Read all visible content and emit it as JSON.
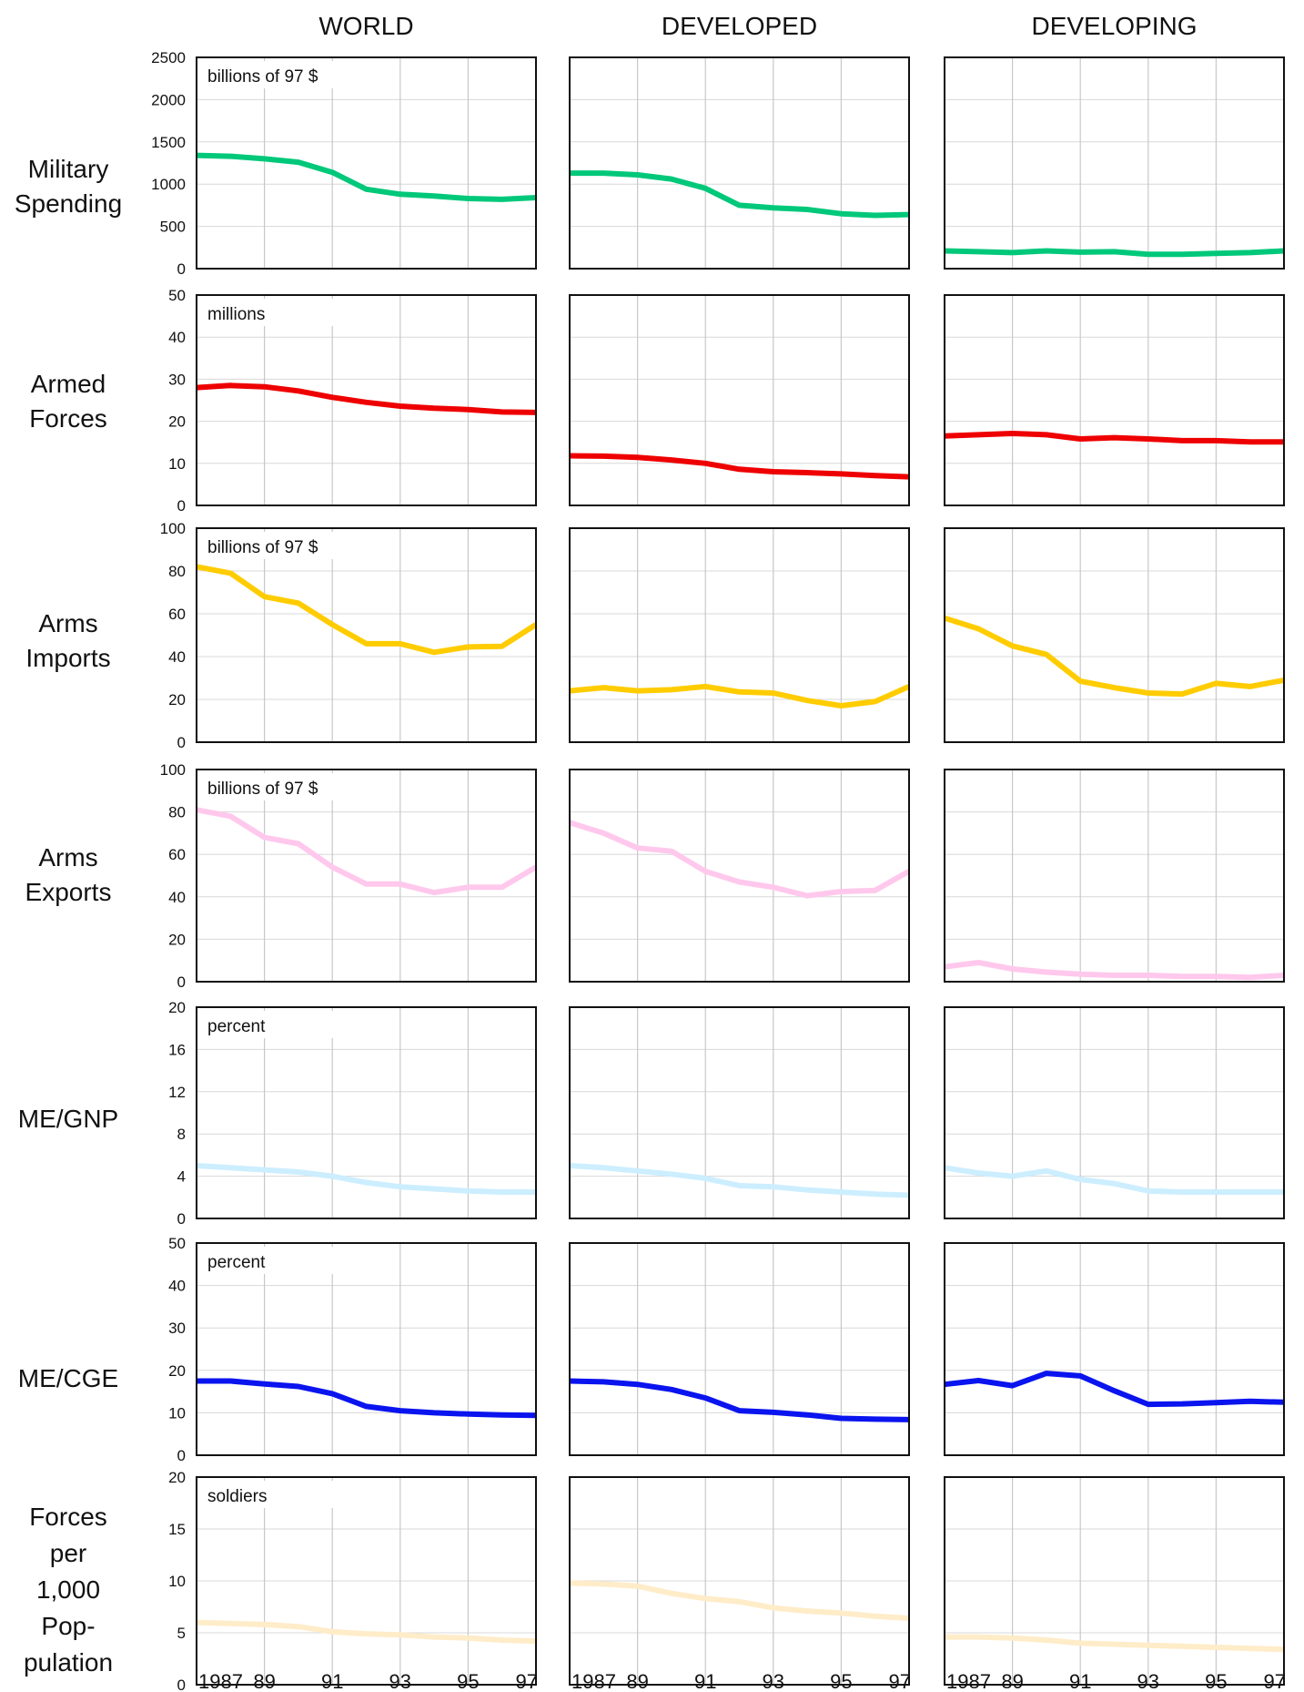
{
  "columns": [
    "WORLD",
    "DEVELOPED",
    "DEVELOPING"
  ],
  "x_tick_labels": [
    "1987",
    "89",
    "91",
    "93",
    "95",
    "97"
  ],
  "chart_data": [
    {
      "type": "line",
      "row_label": "Military Spending",
      "unit_label": "billions of 97 $",
      "color": "#00c87a",
      "ylim": [
        0,
        2500
      ],
      "yticks": [
        0,
        500,
        1000,
        1500,
        2000,
        2500
      ],
      "x": [
        1987,
        1988,
        1989,
        1990,
        1991,
        1992,
        1993,
        1994,
        1995,
        1996,
        1997
      ],
      "series": [
        {
          "column": "WORLD",
          "values": [
            1340,
            1330,
            1300,
            1260,
            1140,
            940,
            880,
            860,
            830,
            820,
            840
          ]
        },
        {
          "column": "DEVELOPED",
          "values": [
            1130,
            1130,
            1110,
            1060,
            950,
            750,
            720,
            700,
            650,
            630,
            640
          ]
        },
        {
          "column": "DEVELOPING",
          "values": [
            210,
            200,
            190,
            210,
            195,
            200,
            170,
            170,
            180,
            190,
            210
          ]
        }
      ]
    },
    {
      "type": "line",
      "row_label": "Armed Forces",
      "unit_label": "millions",
      "color": "#ee0000",
      "ylim": [
        0,
        50
      ],
      "yticks": [
        0,
        10,
        20,
        30,
        40,
        50
      ],
      "x": [
        1987,
        1988,
        1989,
        1990,
        1991,
        1992,
        1993,
        1994,
        1995,
        1996,
        1997
      ],
      "series": [
        {
          "column": "WORLD",
          "values": [
            28,
            28.5,
            28.2,
            27.2,
            25.7,
            24.5,
            23.6,
            23.1,
            22.8,
            22.2,
            22.1
          ]
        },
        {
          "column": "DEVELOPED",
          "values": [
            11.8,
            11.7,
            11.4,
            10.8,
            10,
            8.6,
            8,
            7.8,
            7.5,
            7.1,
            6.8
          ]
        },
        {
          "column": "DEVELOPING",
          "values": [
            16.5,
            16.8,
            17.1,
            16.8,
            15.8,
            16.1,
            15.8,
            15.4,
            15.4,
            15.1,
            15.1
          ]
        }
      ]
    },
    {
      "type": "line",
      "row_label": "Arms Imports",
      "unit_label": "billions of 97 $",
      "color": "#ffcc00",
      "ylim": [
        0,
        100
      ],
      "yticks": [
        0,
        20,
        40,
        60,
        80,
        100
      ],
      "x": [
        1987,
        1988,
        1989,
        1990,
        1991,
        1992,
        1993,
        1994,
        1995,
        1996,
        1997
      ],
      "series": [
        {
          "column": "WORLD",
          "values": [
            82,
            79,
            68,
            65,
            55,
            46,
            46,
            42,
            44.5,
            44.8,
            55
          ]
        },
        {
          "column": "DEVELOPED",
          "values": [
            24,
            25.5,
            24,
            24.5,
            26,
            23.5,
            23,
            19.5,
            17,
            19,
            26
          ]
        },
        {
          "column": "DEVELOPING",
          "values": [
            58,
            53,
            45,
            41,
            28.5,
            25.5,
            23,
            22.5,
            27.5,
            26,
            29
          ]
        }
      ]
    },
    {
      "type": "line",
      "row_label": "Arms Exports",
      "unit_label": "billions of 97 $",
      "color": "#ffc8ec",
      "ylim": [
        0,
        100
      ],
      "yticks": [
        0,
        20,
        40,
        60,
        80,
        100
      ],
      "x": [
        1987,
        1988,
        1989,
        1990,
        1991,
        1992,
        1993,
        1994,
        1995,
        1996,
        1997
      ],
      "series": [
        {
          "column": "WORLD",
          "values": [
            81,
            78,
            68,
            65,
            54,
            46,
            46,
            42,
            44.5,
            44.5,
            54
          ]
        },
        {
          "column": "DEVELOPED",
          "values": [
            75,
            70,
            63,
            61.5,
            52,
            47,
            44.5,
            40.5,
            42.5,
            43,
            52
          ]
        },
        {
          "column": "DEVELOPING",
          "values": [
            7,
            9,
            6,
            4.5,
            3.5,
            3,
            3,
            2.5,
            2.5,
            2,
            3
          ]
        }
      ]
    },
    {
      "type": "line",
      "row_label": "ME/GNP",
      "unit_label": "percent",
      "color": "#cceeff",
      "ylim": [
        0,
        20
      ],
      "yticks": [
        0,
        4,
        8,
        12,
        16,
        20
      ],
      "x": [
        1987,
        1988,
        1989,
        1990,
        1991,
        1992,
        1993,
        1994,
        1995,
        1996,
        1997
      ],
      "series": [
        {
          "column": "WORLD",
          "values": [
            5,
            4.8,
            4.6,
            4.4,
            4,
            3.4,
            3,
            2.8,
            2.6,
            2.5,
            2.5
          ]
        },
        {
          "column": "DEVELOPED",
          "values": [
            5,
            4.8,
            4.5,
            4.2,
            3.8,
            3.1,
            3,
            2.7,
            2.5,
            2.3,
            2.2
          ]
        },
        {
          "column": "DEVELOPING",
          "values": [
            4.8,
            4.3,
            4,
            4.5,
            3.7,
            3.3,
            2.6,
            2.5,
            2.5,
            2.5,
            2.5
          ]
        }
      ]
    },
    {
      "type": "line",
      "row_label": "ME/CGE",
      "unit_label": "percent",
      "color": "#0a14ee",
      "ylim": [
        0,
        50
      ],
      "yticks": [
        0,
        10,
        20,
        30,
        40,
        50
      ],
      "x": [
        1987,
        1988,
        1989,
        1990,
        1991,
        1992,
        1993,
        1994,
        1995,
        1996,
        1997
      ],
      "series": [
        {
          "column": "WORLD",
          "values": [
            17.5,
            17.5,
            16.8,
            16.2,
            14.5,
            11.5,
            10.5,
            10,
            9.7,
            9.5,
            9.4
          ]
        },
        {
          "column": "DEVELOPED",
          "values": [
            17.5,
            17.3,
            16.7,
            15.5,
            13.5,
            10.5,
            10.1,
            9.5,
            8.7,
            8.5,
            8.4
          ]
        },
        {
          "column": "DEVELOPING",
          "values": [
            16.7,
            17.6,
            16.4,
            19.3,
            18.7,
            15.2,
            12,
            12.1,
            12.4,
            12.7,
            12.5
          ]
        }
      ]
    },
    {
      "type": "line",
      "row_label": "Forces per 1,000 Pop-ulation",
      "unit_label": "soldiers",
      "color": "#ffecc8",
      "ylim": [
        0,
        20
      ],
      "yticks": [
        0,
        5,
        10,
        15,
        20
      ],
      "x": [
        1987,
        1988,
        1989,
        1990,
        1991,
        1992,
        1993,
        1994,
        1995,
        1996,
        1997
      ],
      "series": [
        {
          "column": "WORLD",
          "values": [
            6,
            5.9,
            5.8,
            5.6,
            5.1,
            4.9,
            4.8,
            4.6,
            4.5,
            4.3,
            4.2
          ]
        },
        {
          "column": "DEVELOPED",
          "values": [
            9.8,
            9.7,
            9.5,
            8.8,
            8.3,
            8,
            7.4,
            7.1,
            6.9,
            6.6,
            6.4
          ]
        },
        {
          "column": "DEVELOPING",
          "values": [
            4.6,
            4.6,
            4.5,
            4.3,
            4,
            3.9,
            3.8,
            3.7,
            3.6,
            3.5,
            3.4
          ]
        }
      ]
    }
  ]
}
